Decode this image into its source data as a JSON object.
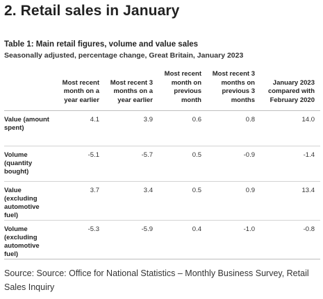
{
  "section_title": "2.  Retail sales in January",
  "table": {
    "title": "Table 1: Main retail figures, volume and value sales",
    "subtitle": "Seasonally adjusted, percentage change, Great Britain, January 2023",
    "columns": [
      "",
      "Most recent month on a year earlier",
      "Most recent 3 months on a year earlier",
      "Most recent month on previous month",
      "Most recent 3 months on previous 3 months",
      "January 2023 compared with February 2020"
    ],
    "rows": [
      {
        "label": "Value (amount spent)",
        "values": [
          "4.1",
          "3.9",
          "0.6",
          "0.8",
          "14.0"
        ]
      },
      {
        "label": "Volume (quantity bought)",
        "values": [
          "-5.1",
          "-5.7",
          "0.5",
          "-0.9",
          "-1.4"
        ]
      },
      {
        "label": "Value (excluding automotive fuel)",
        "values": [
          "3.7",
          "3.4",
          "0.5",
          "0.9",
          "13.4"
        ]
      },
      {
        "label": "Volume (excluding automotive fuel)",
        "values": [
          "-5.3",
          "-5.9",
          "0.4",
          "-1.0",
          "-0.8"
        ]
      }
    ]
  },
  "source": "Source: Source: Office for National Statistics – Monthly Business Survey, Retail Sales Inquiry"
}
